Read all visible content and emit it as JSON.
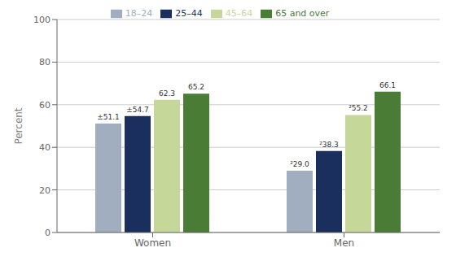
{
  "chart_data": {
    "type": "bar",
    "categories": [
      "Women",
      "Men"
    ],
    "series": [
      {
        "name": "18–24",
        "color": "#a0aec0",
        "values": [
          51.1,
          29.0
        ],
        "value_labels": [
          "±51.1",
          "²29.0"
        ]
      },
      {
        "name": "25–44",
        "color": "#1b2f5e",
        "values": [
          54.7,
          38.3
        ],
        "value_labels": [
          "±54.7",
          "²38.3"
        ]
      },
      {
        "name": "45–64",
        "color": "#c5d89a",
        "values": [
          62.3,
          55.2
        ],
        "value_labels": [
          "62.3",
          "²55.2"
        ]
      },
      {
        "name": "65 and over",
        "color": "#4a7c35",
        "values": [
          65.2,
          66.1
        ],
        "value_labels": [
          "65.2",
          "66.1"
        ]
      }
    ],
    "ylabel": "Percent",
    "ylim": [
      0,
      100
    ],
    "yticks": [
      0,
      20,
      40,
      60,
      80,
      100
    ],
    "grid": true,
    "legend": "top",
    "data_labels": true
  }
}
